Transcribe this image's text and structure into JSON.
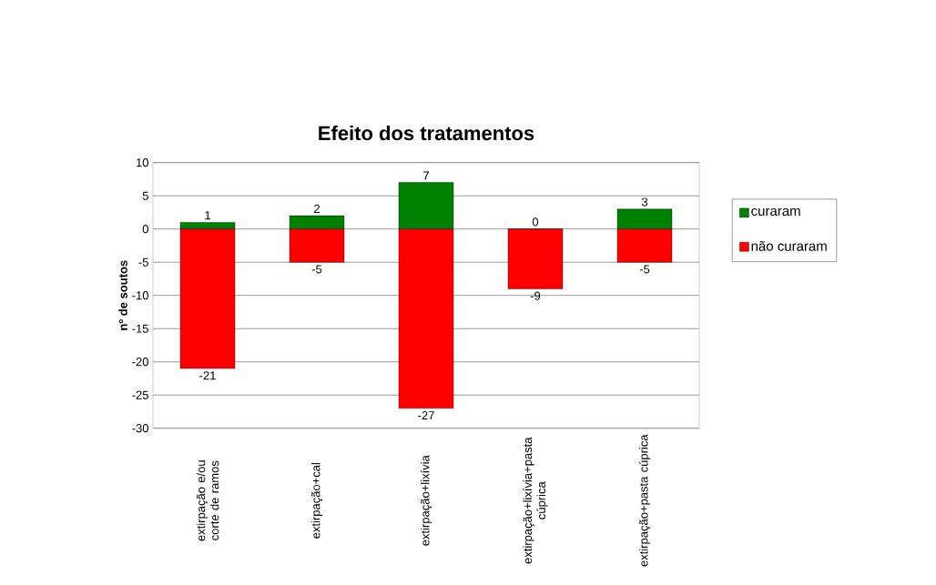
{
  "chart_data": {
    "type": "bar",
    "title": "Efeito dos tratamentos",
    "ylabel": "nº de soutos",
    "categories": [
      "extirpação e/ou corte de ramos",
      "extirpação+cal",
      "extirpação+lixívia",
      "extirpação+lixívia+pasta cúprica",
      "extirpação+pasta cúprica"
    ],
    "series": [
      {
        "name": "curaram",
        "color": "#008000",
        "values": [
          1,
          2,
          7,
          0,
          3
        ]
      },
      {
        "name": "não curaram",
        "color": "#ff0000",
        "values": [
          -21,
          -5,
          -27,
          -9,
          -5
        ]
      }
    ],
    "stacked": true,
    "data_labels": true,
    "ylim": [
      -30,
      10
    ],
    "yticks": [
      -30,
      -25,
      -20,
      -15,
      -10,
      -5,
      0,
      5,
      10
    ],
    "grid": "y",
    "legend": "right"
  }
}
